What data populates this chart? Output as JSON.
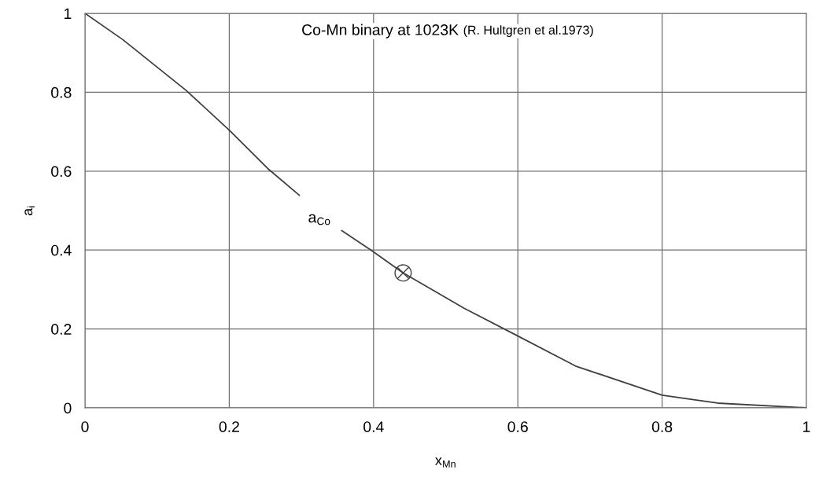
{
  "chart_data": {
    "type": "line",
    "title": "Co-Mn binary at 1023K",
    "subtitle": "(R. Hultgren et al.1973)",
    "xlabel": "x$_{Mn}$",
    "ylabel": "a$_{i}$",
    "xlim": [
      0,
      1
    ],
    "ylim": [
      0,
      1
    ],
    "xticks": [
      0,
      0.2,
      0.4,
      0.6,
      0.8,
      1
    ],
    "yticks": [
      0,
      0.2,
      0.4,
      0.6,
      0.8,
      1
    ],
    "grid": true,
    "legend": false,
    "series": [
      {
        "color": "#404040",
        "x": [
          0,
          0.052,
          0.14,
          0.2,
          0.255,
          0.297,
          0.325,
          0.356,
          0.398,
          0.441,
          0.526,
          0.597,
          0.68,
          0.8,
          0.877,
          1.0
        ],
        "values": [
          1,
          0.934,
          0.805,
          0.704,
          0.604,
          0.539,
          null,
          0.449,
          0.398,
          0.342,
          0.252,
          0.185,
          0.106,
          0.032,
          0.012,
          0
        ]
      },
      {
        "type": "scatter",
        "color": "#404040",
        "marker": "cross",
        "x": [
          0.441
        ],
        "values": [
          0.342
        ]
      }
    ],
    "annotations": [
      "a$_{Co}$"
    ]
  }
}
